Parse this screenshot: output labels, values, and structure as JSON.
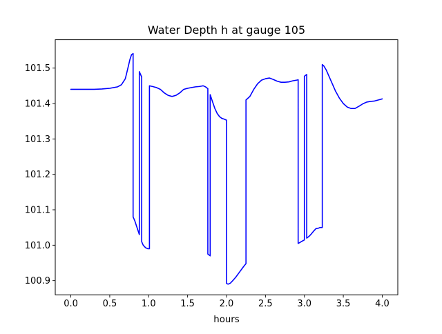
{
  "chart_data": {
    "type": "line",
    "title": "Water Depth h at gauge 105",
    "xlabel": "hours",
    "ylabel": "",
    "xlim": [
      -0.2,
      4.2
    ],
    "ylim": [
      100.86,
      101.58
    ],
    "x_ticks": [
      0.0,
      0.5,
      1.0,
      1.5,
      2.0,
      2.5,
      3.0,
      3.5,
      4.0
    ],
    "x_tick_labels": [
      "0.0",
      "0.5",
      "1.0",
      "1.5",
      "2.0",
      "2.5",
      "3.0",
      "3.5",
      "4.0"
    ],
    "y_ticks": [
      100.9,
      101.0,
      101.1,
      101.2,
      101.3,
      101.4,
      101.5
    ],
    "y_tick_labels": [
      "100.9",
      "101.0",
      "101.1",
      "101.2",
      "101.3",
      "101.4",
      "101.5"
    ],
    "grid": false,
    "legend": "none",
    "series": [
      {
        "color": "#0000ff",
        "x": [
          0.0,
          0.1,
          0.2,
          0.3,
          0.4,
          0.5,
          0.6,
          0.65,
          0.7,
          0.73,
          0.76,
          0.78,
          0.8,
          0.8,
          0.82,
          0.85,
          0.88,
          0.88,
          0.91,
          0.91,
          0.93,
          0.96,
          0.99,
          1.01,
          1.01,
          1.05,
          1.1,
          1.15,
          1.2,
          1.25,
          1.3,
          1.35,
          1.4,
          1.45,
          1.5,
          1.55,
          1.6,
          1.65,
          1.7,
          1.73,
          1.76,
          1.76,
          1.79,
          1.79,
          1.82,
          1.85,
          1.88,
          1.91,
          1.94,
          1.97,
          2.0,
          2.0,
          2.02,
          2.05,
          2.08,
          2.12,
          2.17,
          2.22,
          2.25,
          2.25,
          2.3,
          2.35,
          2.4,
          2.45,
          2.5,
          2.55,
          2.6,
          2.65,
          2.7,
          2.75,
          2.8,
          2.85,
          2.9,
          2.92,
          2.92,
          2.96,
          3.0,
          3.0,
          3.03,
          3.03,
          3.06,
          3.09,
          3.12,
          3.15,
          3.18,
          3.2,
          3.23,
          3.23,
          3.25,
          3.28,
          3.31,
          3.35,
          3.4,
          3.45,
          3.5,
          3.55,
          3.6,
          3.65,
          3.7,
          3.75,
          3.8,
          3.85,
          3.9,
          3.95,
          4.0
        ],
        "y": [
          101.44,
          101.44,
          101.44,
          101.44,
          101.441,
          101.443,
          101.447,
          101.453,
          101.47,
          101.497,
          101.525,
          101.538,
          101.541,
          101.08,
          101.07,
          101.05,
          101.03,
          101.49,
          101.475,
          101.01,
          101.0,
          100.993,
          100.99,
          100.99,
          101.45,
          101.448,
          101.445,
          101.44,
          101.43,
          101.423,
          101.42,
          101.423,
          101.43,
          101.44,
          101.443,
          101.445,
          101.447,
          101.448,
          101.45,
          101.447,
          101.442,
          100.975,
          100.97,
          101.425,
          101.405,
          101.386,
          101.372,
          101.363,
          101.358,
          101.356,
          101.353,
          100.892,
          100.89,
          100.893,
          100.9,
          100.91,
          100.925,
          100.94,
          100.948,
          101.41,
          101.42,
          101.44,
          101.456,
          101.466,
          101.47,
          101.472,
          101.468,
          101.463,
          101.46,
          101.46,
          101.461,
          101.464,
          101.466,
          101.467,
          101.005,
          101.01,
          101.015,
          101.477,
          101.482,
          101.02,
          101.025,
          101.032,
          101.04,
          101.047,
          101.048,
          101.05,
          101.05,
          101.51,
          101.506,
          101.495,
          101.48,
          101.46,
          101.435,
          101.415,
          101.4,
          101.39,
          101.386,
          101.386,
          101.392,
          101.399,
          101.404,
          101.406,
          101.407,
          101.41,
          101.413
        ]
      }
    ]
  }
}
